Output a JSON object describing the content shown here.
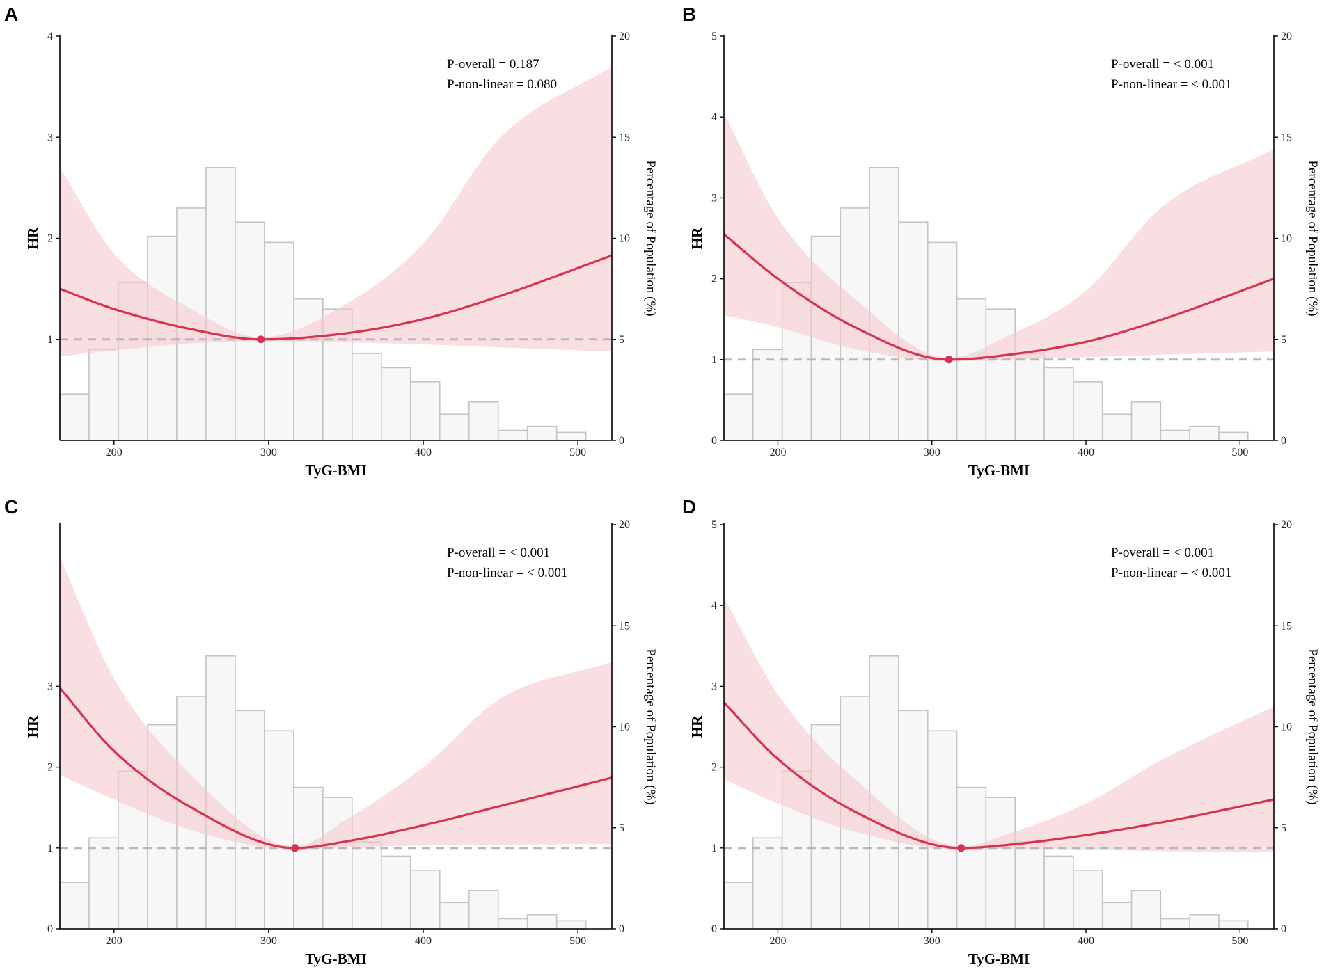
{
  "figure": {
    "colors": {
      "curve": "#d8334e",
      "ci_band": "#f6c9cf",
      "ref_line": "#b8b8b8",
      "bar_fill": "#f8f7f8",
      "bar_stroke": "#c4c4c4",
      "axis": "#000000"
    }
  },
  "chart_data": [
    {
      "panel": "A",
      "type": "line+histogram",
      "xlabel": "TyG-BMI",
      "ylabel": "HR",
      "y2label": "Percentage of Population (%)",
      "xlim": [
        165,
        522
      ],
      "xticks": [
        200,
        300,
        400,
        500
      ],
      "ylim": [
        0,
        4
      ],
      "yticks": [
        1,
        2,
        3,
        4
      ],
      "y2lim": [
        0,
        20
      ],
      "y2ticks": [
        0,
        5,
        10,
        15,
        20
      ],
      "reference_hr": 1,
      "annotations": [
        "P-overall = 0.187",
        "P-non-linear = 0.080"
      ],
      "reference_point": {
        "x": 295,
        "y": 1.0
      },
      "curve": {
        "x": [
          165,
          200,
          250,
          295,
          350,
          400,
          450,
          522
        ],
        "y": [
          1.5,
          1.3,
          1.1,
          1.0,
          1.06,
          1.2,
          1.43,
          1.83
        ]
      },
      "ci_upper": {
        "x": [
          165,
          200,
          250,
          295,
          350,
          400,
          450,
          522
        ],
        "y": [
          2.7,
          1.85,
          1.3,
          1.02,
          1.35,
          1.95,
          3.0,
          3.7
        ]
      },
      "ci_lower": {
        "x": [
          165,
          200,
          250,
          295,
          350,
          400,
          450,
          522
        ],
        "y": [
          0.83,
          0.89,
          0.96,
          0.98,
          0.97,
          0.95,
          0.92,
          0.88
        ]
      },
      "histogram": {
        "bin_start": 165,
        "bin_width": 18.9,
        "percentages": [
          2.3,
          4.5,
          7.8,
          10.1,
          11.5,
          13.5,
          10.8,
          9.8,
          7.0,
          6.5,
          4.3,
          3.6,
          2.9,
          1.3,
          1.9,
          0.5,
          0.7,
          0.4
        ]
      }
    },
    {
      "panel": "B",
      "type": "line+histogram",
      "xlabel": "TyG-BMI",
      "ylabel": "HR",
      "y2label": "Percentage of Population (%)",
      "xlim": [
        165,
        522
      ],
      "xticks": [
        200,
        300,
        400,
        500
      ],
      "ylim": [
        0,
        5
      ],
      "yticks": [
        0,
        1,
        2,
        3,
        4,
        5
      ],
      "y2lim": [
        0,
        20
      ],
      "y2ticks": [
        0,
        5,
        10,
        15,
        20
      ],
      "reference_hr": 1,
      "annotations": [
        "P-overall = < 0.001",
        "P-non-linear = < 0.001"
      ],
      "reference_point": {
        "x": 311,
        "y": 1.0
      },
      "curve": {
        "x": [
          165,
          200,
          250,
          311,
          350,
          400,
          450,
          522
        ],
        "y": [
          2.55,
          2.0,
          1.4,
          1.0,
          1.06,
          1.22,
          1.5,
          2.0
        ]
      },
      "ci_upper": {
        "x": [
          165,
          200,
          250,
          311,
          350,
          400,
          450,
          522
        ],
        "y": [
          4.05,
          2.75,
          1.75,
          1.02,
          1.3,
          1.85,
          2.9,
          3.6
        ]
      },
      "ci_lower": {
        "x": [
          165,
          200,
          250,
          311,
          350,
          400,
          450,
          522
        ],
        "y": [
          1.55,
          1.4,
          1.13,
          0.98,
          1.0,
          1.03,
          1.06,
          1.1
        ]
      },
      "histogram": {
        "bin_start": 165,
        "bin_width": 18.9,
        "percentages": [
          2.3,
          4.5,
          7.8,
          10.1,
          11.5,
          13.5,
          10.8,
          9.8,
          7.0,
          6.5,
          4.3,
          3.6,
          2.9,
          1.3,
          1.9,
          0.5,
          0.7,
          0.4
        ]
      }
    },
    {
      "panel": "C",
      "type": "line+histogram",
      "xlabel": "TyG-BMI",
      "ylabel": "HR",
      "y2label": "Percentage of Population (%)",
      "xlim": [
        165,
        522
      ],
      "xticks": [
        200,
        300,
        400,
        500
      ],
      "ylim": [
        0,
        5
      ],
      "yticks": [
        0,
        1,
        2,
        3
      ],
      "y2lim": [
        0,
        20
      ],
      "y2ticks": [
        0,
        5,
        10,
        15,
        20
      ],
      "reference_hr": 1,
      "annotations": [
        "P-overall = < 0.001",
        "P-non-linear = < 0.001"
      ],
      "reference_point": {
        "x": 317,
        "y": 1.0
      },
      "curve": {
        "x": [
          165,
          200,
          250,
          317,
          350,
          400,
          450,
          522
        ],
        "y": [
          2.98,
          2.2,
          1.5,
          1.0,
          1.08,
          1.28,
          1.52,
          1.87
        ]
      },
      "ci_upper": {
        "x": [
          165,
          200,
          250,
          317,
          350,
          400,
          450,
          522
        ],
        "y": [
          4.6,
          3.1,
          1.9,
          1.02,
          1.35,
          2.0,
          2.85,
          3.3
        ]
      },
      "ci_lower": {
        "x": [
          165,
          200,
          250,
          317,
          350,
          400,
          450,
          522
        ],
        "y": [
          1.9,
          1.6,
          1.22,
          0.98,
          1.01,
          1.03,
          1.04,
          1.05
        ]
      },
      "histogram": {
        "bin_start": 165,
        "bin_width": 18.9,
        "percentages": [
          2.3,
          4.5,
          7.8,
          10.1,
          11.5,
          13.5,
          10.8,
          9.8,
          7.0,
          6.5,
          4.3,
          3.6,
          2.9,
          1.3,
          1.9,
          0.5,
          0.7,
          0.4
        ]
      }
    },
    {
      "panel": "D",
      "type": "line+histogram",
      "xlabel": "TyG-BMI",
      "ylabel": "HR",
      "y2label": "Percentage of Population (%)",
      "xlim": [
        165,
        522
      ],
      "xticks": [
        200,
        300,
        400,
        500
      ],
      "ylim": [
        0,
        5
      ],
      "yticks": [
        0,
        1,
        2,
        3,
        4,
        5
      ],
      "y2lim": [
        0,
        20
      ],
      "y2ticks": [
        0,
        5,
        10,
        15,
        20
      ],
      "reference_hr": 1,
      "annotations": [
        "P-overall = < 0.001",
        "P-non-linear = < 0.001"
      ],
      "reference_point": {
        "x": 319,
        "y": 1.0
      },
      "curve": {
        "x": [
          165,
          200,
          250,
          319,
          350,
          400,
          450,
          522
        ],
        "y": [
          2.8,
          2.1,
          1.45,
          1.0,
          1.04,
          1.16,
          1.32,
          1.6
        ]
      },
      "ci_upper": {
        "x": [
          165,
          200,
          250,
          319,
          350,
          400,
          450,
          522
        ],
        "y": [
          4.1,
          2.9,
          1.85,
          1.02,
          1.18,
          1.55,
          2.1,
          2.75
        ]
      },
      "ci_lower": {
        "x": [
          165,
          200,
          250,
          319,
          350,
          400,
          450,
          522
        ],
        "y": [
          1.85,
          1.55,
          1.2,
          0.98,
          0.99,
          0.98,
          0.96,
          0.95
        ]
      },
      "histogram": {
        "bin_start": 165,
        "bin_width": 18.9,
        "percentages": [
          2.3,
          4.5,
          7.8,
          10.1,
          11.5,
          13.5,
          10.8,
          9.8,
          7.0,
          6.5,
          4.3,
          3.6,
          2.9,
          1.3,
          1.9,
          0.5,
          0.7,
          0.4
        ]
      }
    }
  ]
}
